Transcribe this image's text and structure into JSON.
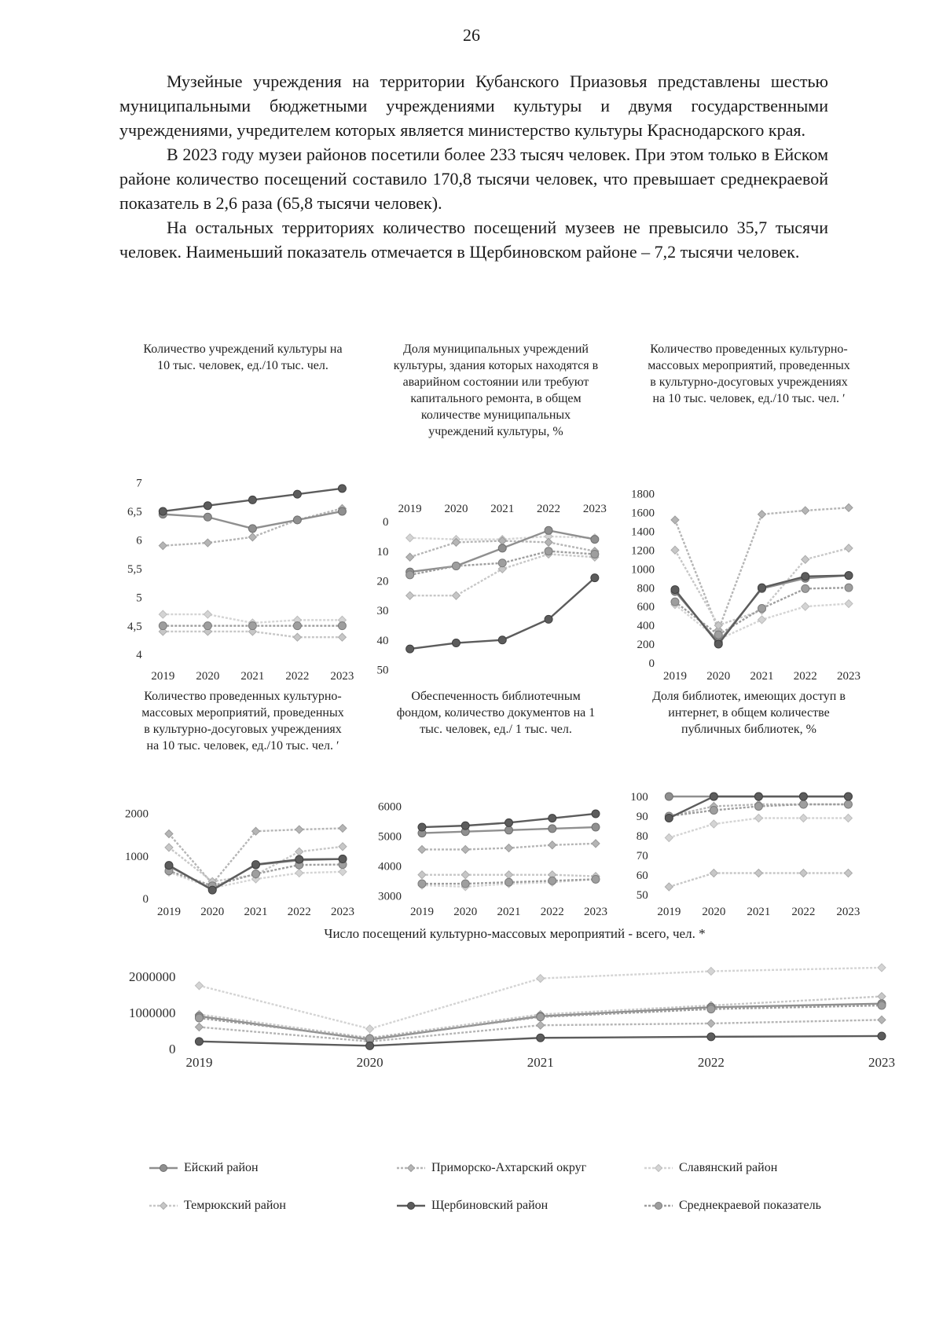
{
  "page": {
    "number": "26"
  },
  "paragraphs": [
    "Музейные учреждения на территории Кубанского Приазовья представлены шестью муниципальными бюджетными учреждениями культуры и двумя государственными учреждениями, учредителем которых является министерство культуры Краснодарского края.",
    "В 2023 году музеи районов посетили более 233 тысяч человек. При этом только в Ейском районе количество посещений составило 170,8 тысячи человек, что превышает среднекраевой показатель в 2,6 раза (65,8 тысячи человек).",
    "На остальных территориях количество посещений музеев не превысило 35,7 тысячи человек. Наименьший показатель отмечается в Щербиновском районе – 7,2 тысячи человек."
  ],
  "legend": {
    "items": [
      {
        "label": "Ейский район",
        "color": "#8f8f8f",
        "stroke": "#6f6f6f",
        "marker": "circle",
        "dash": ""
      },
      {
        "label": "Приморско-Ахтарский округ",
        "color": "#b5b5b5",
        "stroke": "#9a9a9a",
        "marker": "diamond",
        "dash": "3 2"
      },
      {
        "label": "Славянский район",
        "color": "#d4d4d4",
        "stroke": "#bdbdbd",
        "marker": "diamond",
        "dash": "3 2"
      },
      {
        "label": "Темрюкский район",
        "color": "#c7c7c7",
        "stroke": "#ababab",
        "marker": "diamond",
        "dash": "3 2"
      },
      {
        "label": "Щербиновский район",
        "color": "#5c5c5c",
        "stroke": "#3f3f3f",
        "marker": "circle",
        "dash": ""
      },
      {
        "label": "Среднекраевой показатель",
        "color": "#9e9e9e",
        "stroke": "#7d7d7d",
        "marker": "circle",
        "dash": "3 2"
      }
    ]
  },
  "chart_data": [
    {
      "type": "line",
      "title": "Количество учреждений культуры на 10 тыс. человек, ед./10 тыс. чел.",
      "x": [
        "2019",
        "2020",
        "2021",
        "2022",
        "2023"
      ],
      "ylim": [
        3.85,
        7.2
      ],
      "yticks": [
        4,
        4.5,
        5,
        5.5,
        6,
        6.5,
        7
      ],
      "ytick_labels": [
        "4",
        "4,5",
        "5",
        "5,5",
        "6",
        "6,5",
        "7"
      ],
      "x_axis_position": "bottom",
      "y_inverted": false,
      "grid": false,
      "legend_position": "none",
      "series": [
        {
          "name": "Приморско-Ахтарский округ",
          "values": [
            5.9,
            5.95,
            6.05,
            6.35,
            6.55
          ]
        },
        {
          "name": "Славянский район",
          "values": [
            4.7,
            4.7,
            4.55,
            4.6,
            4.6
          ]
        },
        {
          "name": "Темрюкский район",
          "values": [
            4.4,
            4.4,
            4.4,
            4.3,
            4.3
          ]
        },
        {
          "name": "Ейский район",
          "values": [
            6.45,
            6.4,
            6.2,
            6.35,
            6.5
          ]
        },
        {
          "name": "Среднекраевой показатель",
          "values": [
            4.5,
            4.5,
            4.5,
            4.5,
            4.5
          ]
        },
        {
          "name": "Щербиновский район",
          "values": [
            6.5,
            6.6,
            6.7,
            6.8,
            6.9
          ]
        }
      ]
    },
    {
      "type": "line",
      "title": "Доля муниципальных учреждений культуры, здания которых находятся в аварийном состоянии или требуют капитального ремонта, в общем количестве муниципальных учреждений культуры, %",
      "x": [
        "2019",
        "2020",
        "2021",
        "2022",
        "2023"
      ],
      "ylim": [
        0,
        52
      ],
      "yticks": [
        0,
        10,
        20,
        30,
        40,
        50
      ],
      "ytick_labels": [
        "0",
        "10",
        "20",
        "30",
        "40",
        "50"
      ],
      "x_axis_position": "top",
      "y_inverted": true,
      "grid": false,
      "legend_position": "none",
      "series": [
        {
          "name": "Славянский район",
          "values": [
            5.5,
            6,
            6,
            5,
            5.5
          ]
        },
        {
          "name": "Приморско-Ахтарский округ",
          "values": [
            12,
            7,
            6.5,
            7,
            10
          ]
        },
        {
          "name": "Темрюкский район",
          "values": [
            25,
            25,
            16,
            11,
            12
          ]
        },
        {
          "name": "Ейский район",
          "values": [
            17,
            15,
            9,
            3,
            6
          ]
        },
        {
          "name": "Среднекраевой показатель",
          "values": [
            18,
            15,
            14,
            10,
            11
          ]
        },
        {
          "name": "Щербиновский район",
          "values": [
            43,
            41,
            40,
            33,
            19
          ]
        }
      ]
    },
    {
      "type": "line",
      "title": "Количество проведенных культурно-массовых мероприятий, проведенных в культурно-досуговых учреждениях на 10 тыс. человек, ед./10 тыс. чел. ʹ",
      "x": [
        "2019",
        "2020",
        "2021",
        "2022",
        "2023"
      ],
      "ylim": [
        0,
        1870
      ],
      "yticks": [
        0,
        200,
        400,
        600,
        800,
        1000,
        1200,
        1400,
        1600,
        1800
      ],
      "ytick_labels": [
        "0",
        "200",
        "400",
        "600",
        "800",
        "1000",
        "1200",
        "1400",
        "1600",
        "1800"
      ],
      "x_axis_position": "bottom",
      "y_inverted": false,
      "grid": false,
      "legend_position": "none",
      "series": [
        {
          "name": "Приморско-Ахтарский округ",
          "values": [
            1520,
            350,
            1580,
            1620,
            1650
          ]
        },
        {
          "name": "Славянский район",
          "values": [
            620,
            250,
            460,
            600,
            630
          ]
        },
        {
          "name": "Темрюкский район",
          "values": [
            1200,
            400,
            560,
            1100,
            1220
          ]
        },
        {
          "name": "Ейский район",
          "values": [
            760,
            220,
            790,
            900,
            930
          ]
        },
        {
          "name": "Среднекраевой показатель",
          "values": [
            650,
            300,
            580,
            790,
            800
          ]
        },
        {
          "name": "Щербиновский район",
          "values": [
            780,
            200,
            800,
            920,
            930
          ]
        }
      ]
    },
    {
      "type": "line",
      "title": "Количество проведенных культурно-массовых мероприятий, проведенных в культурно-досуговых учреждениях на 10 тыс. человек, ед./10 тыс. чел. ʹ",
      "x": [
        "2019",
        "2020",
        "2021",
        "2022",
        "2023"
      ],
      "ylim": [
        0,
        2100
      ],
      "yticks": [
        0,
        1000,
        2000
      ],
      "ytick_labels": [
        "0",
        "1000",
        "2000"
      ],
      "x_axis_position": "bottom",
      "y_inverted": false,
      "grid": false,
      "legend_position": "none",
      "series": [
        {
          "name": "Приморско-Ахтарский округ",
          "values": [
            1520,
            350,
            1580,
            1620,
            1650
          ]
        },
        {
          "name": "Славянский район",
          "values": [
            620,
            250,
            460,
            600,
            630
          ]
        },
        {
          "name": "Темрюкский район",
          "values": [
            1200,
            400,
            560,
            1100,
            1220
          ]
        },
        {
          "name": "Ейский район",
          "values": [
            760,
            220,
            790,
            900,
            930
          ]
        },
        {
          "name": "Среднекраевой показатель",
          "values": [
            650,
            300,
            580,
            790,
            800
          ]
        },
        {
          "name": "Щербиновский район",
          "values": [
            780,
            200,
            800,
            920,
            930
          ]
        }
      ]
    },
    {
      "type": "line",
      "title": "Обеспеченность библиотечным фондом, количество документов на 1 тыс. человек, ед./ 1 тыс. чел.",
      "x": [
        "2019",
        "2020",
        "2021",
        "2022",
        "2023"
      ],
      "ylim": [
        2900,
        6250
      ],
      "yticks": [
        3000,
        4000,
        5000,
        6000
      ],
      "ytick_labels": [
        "3000",
        "4000",
        "5000",
        "6000"
      ],
      "x_axis_position": "bottom",
      "y_inverted": false,
      "grid": false,
      "legend_position": "none",
      "series": [
        {
          "name": "Славянский район",
          "values": [
            3350,
            3300,
            3400,
            3450,
            3550
          ]
        },
        {
          "name": "Приморско-Ахтарский округ",
          "values": [
            4550,
            4550,
            4600,
            4700,
            4750
          ]
        },
        {
          "name": "Темрюкский район",
          "values": [
            3700,
            3700,
            3700,
            3700,
            3650
          ]
        },
        {
          "name": "Ейский район",
          "values": [
            5100,
            5150,
            5200,
            5250,
            5300
          ]
        },
        {
          "name": "Среднекраевой показатель",
          "values": [
            3400,
            3400,
            3450,
            3500,
            3550
          ]
        },
        {
          "name": "Щербиновский район",
          "values": [
            5300,
            5350,
            5450,
            5600,
            5750
          ]
        }
      ]
    },
    {
      "type": "line",
      "title": "Доля библиотек, имеющих доступ в интернет, в общем количестве публичных библиотек, %",
      "x": [
        "2019",
        "2020",
        "2021",
        "2022",
        "2023"
      ],
      "ylim": [
        48,
        104
      ],
      "yticks": [
        50,
        60,
        70,
        80,
        90,
        100
      ],
      "ytick_labels": [
        "50",
        "60",
        "70",
        "80",
        "90",
        "100"
      ],
      "x_axis_position": "bottom",
      "y_inverted": false,
      "grid": false,
      "legend_position": "none",
      "series": [
        {
          "name": "Славянский район",
          "values": [
            79,
            86,
            89,
            89,
            89
          ]
        },
        {
          "name": "Темрюкский район",
          "values": [
            54,
            61,
            61,
            61,
            61
          ]
        },
        {
          "name": "Приморско-Ахтарский округ",
          "values": [
            90,
            95,
            96,
            96,
            96
          ]
        },
        {
          "name": "Ейский район",
          "values": [
            100,
            100,
            100,
            100,
            100
          ]
        },
        {
          "name": "Среднекраевой показатель",
          "values": [
            90,
            93,
            95,
            96,
            96
          ]
        },
        {
          "name": "Щербиновский район",
          "values": [
            89,
            100,
            100,
            100,
            100
          ]
        }
      ]
    },
    {
      "type": "line",
      "title": "Число посещений культурно-массовых мероприятий - всего, чел. *",
      "x": [
        "2019",
        "2020",
        "2021",
        "2022",
        "2023"
      ],
      "ylim": [
        0,
        2400000
      ],
      "yticks": [
        0,
        1000000,
        2000000
      ],
      "ytick_labels": [
        "0",
        "1000000",
        "2000000"
      ],
      "x_axis_position": "bottom",
      "y_inverted": false,
      "grid": false,
      "legend_position": "bottom",
      "series": [
        {
          "name": "Славянский район",
          "values": [
            1750000,
            550000,
            1950000,
            2150000,
            2250000
          ]
        },
        {
          "name": "Приморско-Ахтарский округ",
          "values": [
            600000,
            200000,
            650000,
            700000,
            800000
          ]
        },
        {
          "name": "Темрюкский район",
          "values": [
            950000,
            300000,
            950000,
            1200000,
            1450000
          ]
        },
        {
          "name": "Ейский район",
          "values": [
            900000,
            250000,
            900000,
            1150000,
            1250000
          ]
        },
        {
          "name": "Среднекраевой показатель",
          "values": [
            850000,
            280000,
            880000,
            1100000,
            1200000
          ]
        },
        {
          "name": "Щербиновский район",
          "values": [
            200000,
            80000,
            300000,
            330000,
            350000
          ]
        }
      ]
    }
  ]
}
